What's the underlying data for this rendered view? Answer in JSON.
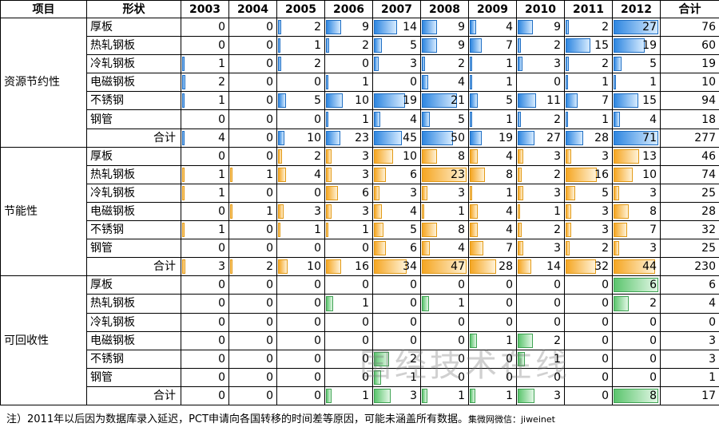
{
  "header": {
    "col_item": "项目",
    "col_shape": "形状",
    "years": [
      "2003",
      "2004",
      "2005",
      "2006",
      "2007",
      "2008",
      "2009",
      "2010",
      "2011",
      "2012"
    ],
    "col_total": "合计"
  },
  "groups": [
    {
      "name": "资源节约性",
      "color": "#2e86e0",
      "rows": [
        {
          "shape": "厚板",
          "values": [
            0,
            0,
            2,
            9,
            14,
            9,
            4,
            9,
            2,
            27
          ],
          "total": 76
        },
        {
          "shape": "热轧钢板",
          "values": [
            0,
            0,
            1,
            2,
            5,
            9,
            7,
            2,
            15,
            19
          ],
          "total": 60
        },
        {
          "shape": "冷轧钢板",
          "values": [
            1,
            0,
            2,
            0,
            3,
            2,
            1,
            3,
            2,
            5
          ],
          "total": 19
        },
        {
          "shape": "电磁钢板",
          "values": [
            2,
            0,
            0,
            1,
            0,
            4,
            1,
            0,
            1,
            1
          ],
          "total": 10
        },
        {
          "shape": "不锈钢",
          "values": [
            1,
            0,
            5,
            10,
            19,
            21,
            5,
            11,
            7,
            15
          ],
          "total": 94
        },
        {
          "shape": "钢管",
          "values": [
            0,
            0,
            0,
            1,
            4,
            5,
            1,
            2,
            1,
            4
          ],
          "total": 18
        },
        {
          "shape": "合计",
          "values": [
            4,
            0,
            10,
            23,
            45,
            50,
            19,
            27,
            28,
            71
          ],
          "total": 277
        }
      ]
    },
    {
      "name": "节能性",
      "color": "#f5a623",
      "rows": [
        {
          "shape": "厚板",
          "values": [
            0,
            0,
            2,
            3,
            10,
            8,
            4,
            3,
            3,
            13
          ],
          "total": 46
        },
        {
          "shape": "热轧钢板",
          "values": [
            1,
            1,
            4,
            3,
            6,
            23,
            8,
            2,
            16,
            10
          ],
          "total": 74
        },
        {
          "shape": "冷轧钢板",
          "values": [
            1,
            0,
            0,
            6,
            3,
            3,
            1,
            3,
            5,
            3
          ],
          "total": 25
        },
        {
          "shape": "电磁钢板",
          "values": [
            0,
            1,
            3,
            3,
            4,
            1,
            4,
            1,
            3,
            8
          ],
          "total": 28
        },
        {
          "shape": "不锈钢",
          "values": [
            1,
            0,
            1,
            1,
            5,
            8,
            4,
            2,
            3,
            7
          ],
          "total": 32
        },
        {
          "shape": "钢管",
          "values": [
            0,
            0,
            0,
            0,
            6,
            4,
            7,
            3,
            2,
            3
          ],
          "total": 25
        },
        {
          "shape": "合计",
          "values": [
            3,
            2,
            10,
            16,
            34,
            47,
            28,
            14,
            32,
            44
          ],
          "total": 230
        }
      ]
    },
    {
      "name": "可回收性",
      "color": "#5cc56e",
      "rows": [
        {
          "shape": "厚板",
          "values": [
            0,
            0,
            0,
            0,
            0,
            0,
            0,
            0,
            0,
            6
          ],
          "total": 6
        },
        {
          "shape": "热轧钢板",
          "values": [
            0,
            0,
            0,
            1,
            0,
            1,
            0,
            0,
            0,
            2
          ],
          "total": 4
        },
        {
          "shape": "冷轧钢板",
          "values": [
            0,
            0,
            0,
            0,
            0,
            0,
            0,
            0,
            0,
            0
          ],
          "total": 0
        },
        {
          "shape": "电磁钢板",
          "values": [
            0,
            0,
            0,
            0,
            0,
            0,
            1,
            2,
            0,
            0
          ],
          "total": 3
        },
        {
          "shape": "不锈钢",
          "values": [
            0,
            0,
            0,
            0,
            2,
            0,
            0,
            1,
            0,
            0
          ],
          "total": 3
        },
        {
          "shape": "钢管",
          "values": [
            0,
            0,
            0,
            0,
            1,
            0,
            0,
            0,
            0,
            0
          ],
          "total": 1
        },
        {
          "shape": "合计",
          "values": [
            0,
            0,
            0,
            1,
            3,
            1,
            1,
            3,
            0,
            8
          ],
          "total": 17
        }
      ]
    }
  ],
  "note": "注）2011年以后因为数据库录入延迟，PCT申请向各国转移的时间差等原因，可能未涵盖所有数据。",
  "source": "集微网微信：jiweinet",
  "watermark": "国经技术在线"
}
